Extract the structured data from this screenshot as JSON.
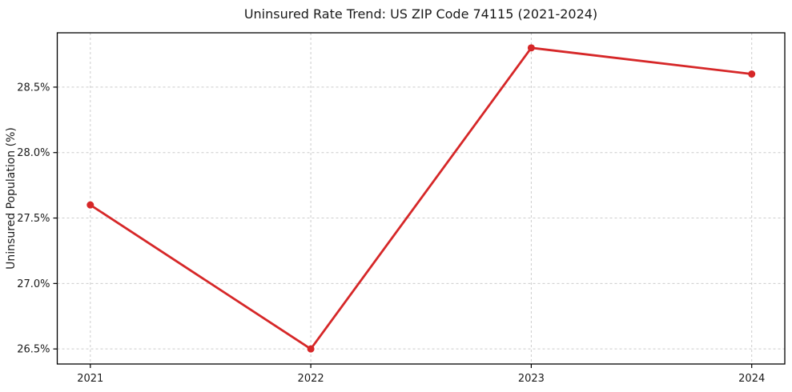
{
  "chart_data": {
    "type": "line",
    "title": "Uninsured Rate Trend: US ZIP Code 74115 (2021-2024)",
    "xlabel": "",
    "ylabel": "Uninsured Population (%)",
    "x": [
      2021,
      2022,
      2023,
      2024
    ],
    "x_tick_labels": [
      "2021",
      "2022",
      "2023",
      "2024"
    ],
    "y_ticks": [
      26.5,
      27.0,
      27.5,
      28.0,
      28.5
    ],
    "y_tick_labels": [
      "26.5%",
      "27.0%",
      "27.5%",
      "28.0%",
      "28.5%"
    ],
    "xlim": [
      2020.85,
      2024.15
    ],
    "ylim": [
      26.385,
      28.915
    ],
    "series": [
      {
        "name": "Uninsured Population (%)",
        "values": [
          27.6,
          26.5,
          28.8,
          28.6
        ],
        "color": "#d62728"
      }
    ],
    "grid": true,
    "grid_style": "dashed",
    "grid_color": "#cccccc",
    "axis_color": "#000000",
    "text_color": "#1a1a1a",
    "legend": "none",
    "marker": "circle"
  }
}
